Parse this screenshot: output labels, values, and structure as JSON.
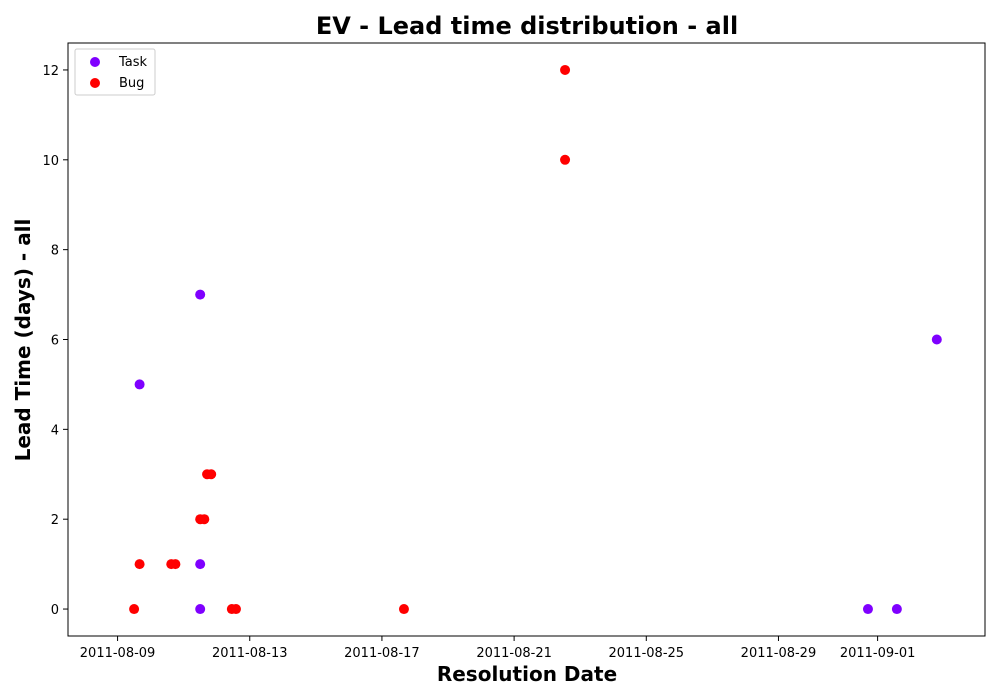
{
  "chart_data": {
    "type": "scatter",
    "title": "EV - Lead time distribution - all",
    "xlabel": "Resolution Date",
    "ylabel": "Lead Time (days) - all",
    "x_axis_type": "date",
    "xlim": [
      "2011-08-07T12:00",
      "2011-09-04T06:00"
    ],
    "ylim": [
      -0.6,
      12.6
    ],
    "x_ticks": [
      "2011-08-09",
      "2011-08-13",
      "2011-08-17",
      "2011-08-21",
      "2011-08-25",
      "2011-08-29",
      "2011-09-01"
    ],
    "y_ticks": [
      0,
      2,
      4,
      6,
      8,
      10,
      12
    ],
    "grid": false,
    "legend_position": "top-left",
    "series": [
      {
        "name": "Task",
        "color": "#7f00ff",
        "points": [
          {
            "x": "2011-08-09T16:00",
            "y": 5
          },
          {
            "x": "2011-08-11T12:00",
            "y": 7
          },
          {
            "x": "2011-08-11T12:00",
            "y": 1
          },
          {
            "x": "2011-08-11T12:00",
            "y": 0
          },
          {
            "x": "2011-08-31T17:00",
            "y": 0
          },
          {
            "x": "2011-09-01T14:00",
            "y": 0
          },
          {
            "x": "2011-09-02T19:00",
            "y": 6
          }
        ]
      },
      {
        "name": "Bug",
        "color": "#ff0000",
        "points": [
          {
            "x": "2011-08-09T12:00",
            "y": 0
          },
          {
            "x": "2011-08-09T16:00",
            "y": 1
          },
          {
            "x": "2011-08-10T15:00",
            "y": 1
          },
          {
            "x": "2011-08-10T18:00",
            "y": 1
          },
          {
            "x": "2011-08-11T12:00",
            "y": 2
          },
          {
            "x": "2011-08-11T15:00",
            "y": 2
          },
          {
            "x": "2011-08-11T17:00",
            "y": 3
          },
          {
            "x": "2011-08-11T20:00",
            "y": 3
          },
          {
            "x": "2011-08-12T11:00",
            "y": 0
          },
          {
            "x": "2011-08-12T14:00",
            "y": 0
          },
          {
            "x": "2011-08-17T16:00",
            "y": 0
          },
          {
            "x": "2011-08-22T13:00",
            "y": 12
          },
          {
            "x": "2011-08-22T13:00",
            "y": 10
          }
        ]
      }
    ]
  }
}
